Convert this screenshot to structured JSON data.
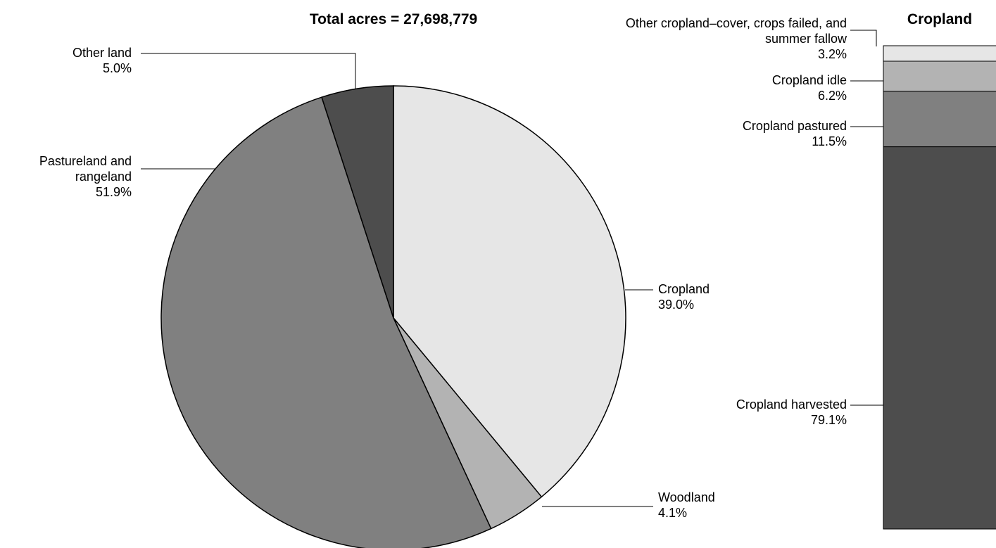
{
  "chart_data": [
    {
      "type": "pie",
      "title": "Total acres = 27,698,779",
      "categories": [
        "Cropland",
        "Woodland",
        "Pastureland and rangeland",
        "Other land"
      ],
      "values": [
        39.0,
        4.1,
        51.9,
        5.0
      ],
      "value_labels": [
        "39.0%",
        "4.1%",
        "51.9%",
        "5.0%"
      ],
      "colors": [
        "#e6e6e6",
        "#b3b3b3",
        "#808080",
        "#4d4d4d"
      ]
    },
    {
      "type": "stacked-bar",
      "title": "Cropland",
      "categories": [
        "Cropland harvested",
        "Cropland pastured",
        "Cropland idle",
        "Other cropland–cover, crops failed, and summer fallow"
      ],
      "values": [
        79.1,
        11.5,
        6.2,
        3.2
      ],
      "value_labels": [
        "79.1%",
        "11.5%",
        "6.2%",
        "3.2%"
      ],
      "colors": [
        "#4d4d4d",
        "#808080",
        "#b3b3b3",
        "#e6e6e6"
      ]
    }
  ]
}
